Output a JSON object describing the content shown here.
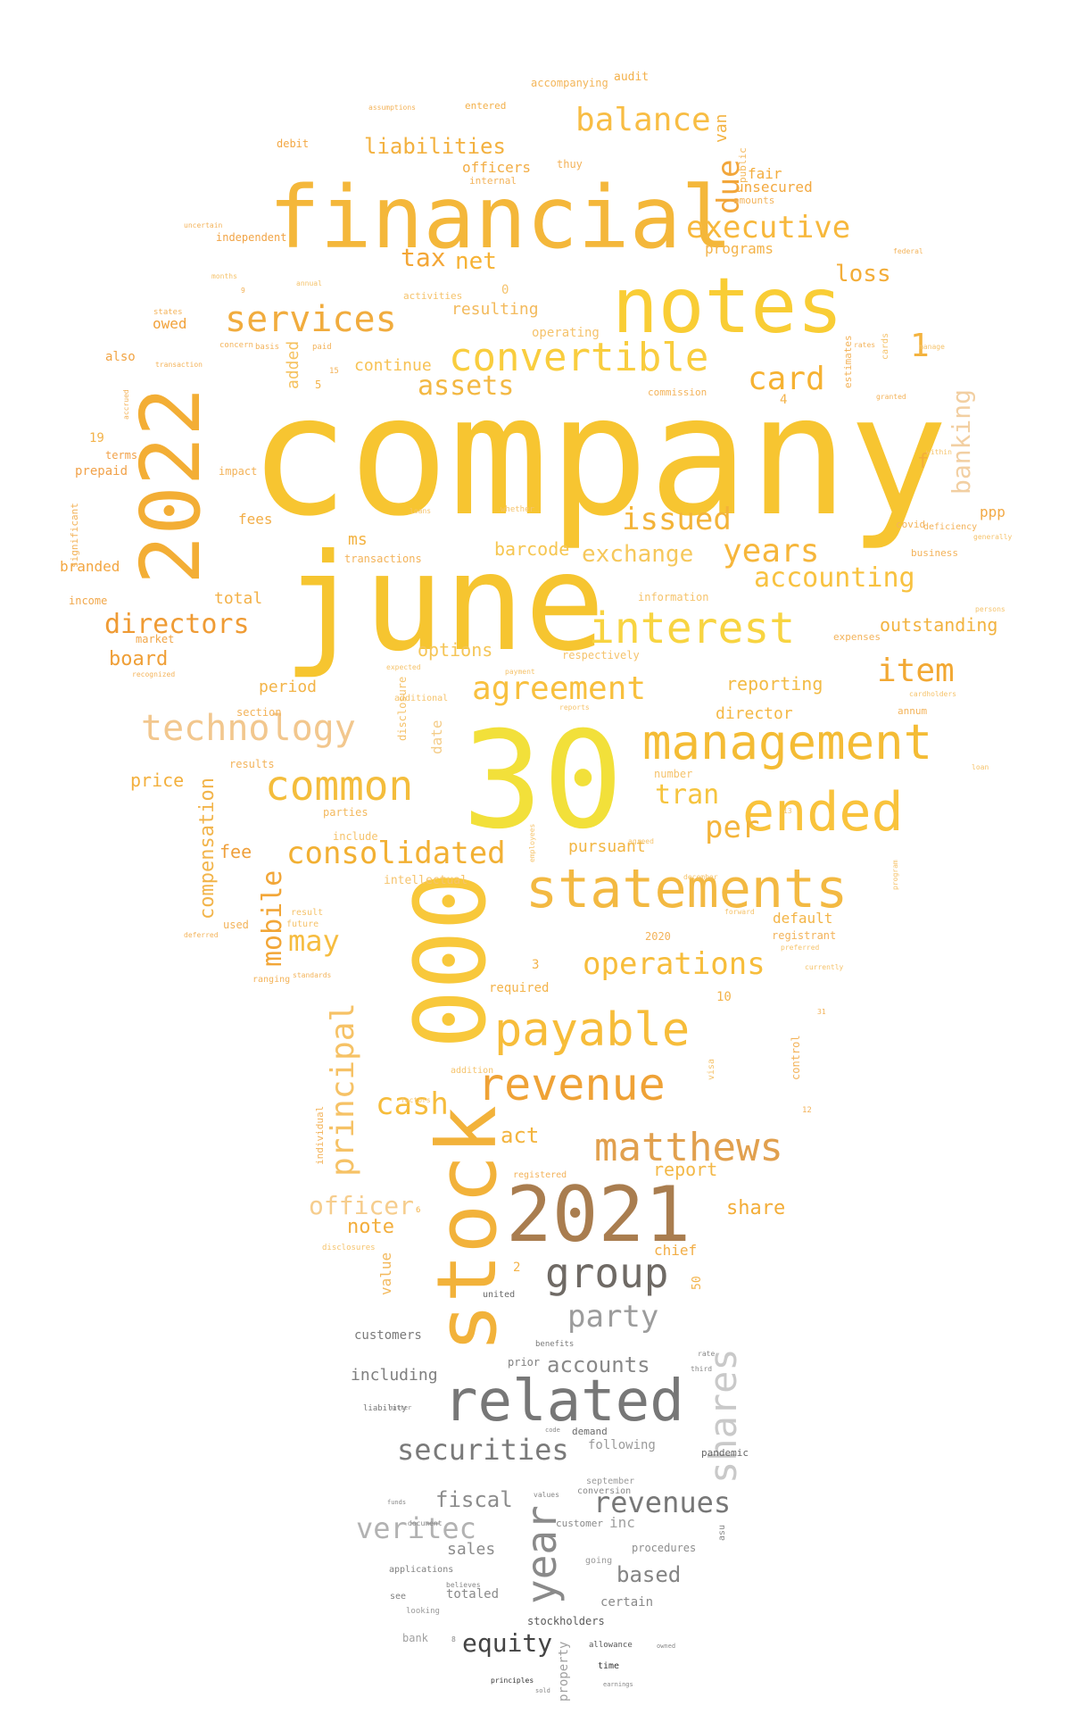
{
  "word_cloud": {
    "words": [
      {
        "text": "company",
        "color": "#f7c531"
      },
      {
        "text": "june",
        "color": "#f6c530"
      },
      {
        "text": "30",
        "color": "#f2e03a"
      },
      {
        "text": "financial",
        "color": "#f4b73a"
      },
      {
        "text": "notes",
        "color": "#f9cd35"
      },
      {
        "text": "2022",
        "color": "#f3ae35"
      },
      {
        "text": "000",
        "color": "#f8c83b"
      },
      {
        "text": "stock",
        "color": "#f2b23a"
      },
      {
        "text": "2021",
        "color": "#a97d4f"
      },
      {
        "text": "related",
        "color": "#777777"
      },
      {
        "text": "statements",
        "color": "#f3b942"
      },
      {
        "text": "management",
        "color": "#f4bc35"
      },
      {
        "text": "ended",
        "color": "#f9c33c"
      },
      {
        "text": "payable",
        "color": "#f7bd3a"
      },
      {
        "text": "revenue",
        "color": "#efa236"
      },
      {
        "text": "matthews",
        "color": "#e1a04e"
      },
      {
        "text": "group",
        "color": "#6f6a65"
      },
      {
        "text": "shares",
        "color": "#c9c9c9"
      },
      {
        "text": "year",
        "color": "#8a8a8a"
      },
      {
        "text": "interest",
        "color": "#f8d441"
      },
      {
        "text": "technology",
        "color": "#f2c78e"
      },
      {
        "text": "common",
        "color": "#f4bd3c"
      },
      {
        "text": "consolidated",
        "color": "#f2b033"
      },
      {
        "text": "convertible",
        "color": "#f9cd3e"
      },
      {
        "text": "services",
        "color": "#f1ac3e"
      },
      {
        "text": "balance",
        "color": "#f8bd44"
      },
      {
        "text": "executive",
        "color": "#f7b83c"
      },
      {
        "text": "agreement",
        "color": "#f8c03e"
      },
      {
        "text": "operations",
        "color": "#f7bd3b"
      },
      {
        "text": "years",
        "color": "#f6b63b"
      },
      {
        "text": "accounting",
        "color": "#f8c240"
      },
      {
        "text": "issued",
        "color": "#f3b338"
      },
      {
        "text": "directors",
        "color": "#ef9b34"
      },
      {
        "text": "card",
        "color": "#f6b232"
      },
      {
        "text": "due",
        "color": "#f2a63a"
      },
      {
        "text": "item",
        "color": "#f2a833"
      },
      {
        "text": "principal",
        "color": "#f6c266"
      },
      {
        "text": "mobile",
        "color": "#f2a637"
      },
      {
        "text": "cash",
        "color": "#f6bc3b"
      },
      {
        "text": "officer",
        "color": "#f6cd8d"
      },
      {
        "text": "securities",
        "color": "#7a7a7a"
      },
      {
        "text": "veritec",
        "color": "#b2b2b2"
      },
      {
        "text": "revenues",
        "color": "#777777"
      },
      {
        "text": "equity",
        "color": "#444444"
      },
      {
        "text": "party",
        "color": "#9c9c9c"
      },
      {
        "text": "accounts",
        "color": "#888888"
      },
      {
        "text": "based",
        "color": "#848484"
      },
      {
        "text": "fiscal",
        "color": "#8c8c8c"
      },
      {
        "text": "exchange",
        "color": "#f6c85c"
      },
      {
        "text": "assets",
        "color": "#f3b843"
      },
      {
        "text": "liabilities",
        "color": "#f3b13f"
      },
      {
        "text": "banking",
        "color": "#f2cfa2"
      },
      {
        "text": "compensation",
        "color": "#f2b44a"
      },
      {
        "text": "per",
        "color": "#f4b43a"
      },
      {
        "text": "tran",
        "color": "#f6c43e"
      },
      {
        "text": "may",
        "color": "#f6bc3f"
      },
      {
        "text": "tax",
        "color": "#f3a636"
      },
      {
        "text": "net",
        "color": "#f6b234"
      },
      {
        "text": "loss",
        "color": "#f3ad38"
      },
      {
        "text": "board",
        "color": "#ef9f37"
      },
      {
        "text": "share",
        "color": "#f3ad38"
      },
      {
        "text": "act",
        "color": "#f3b43e"
      },
      {
        "text": "note",
        "color": "#f3ae3c"
      },
      {
        "text": "report",
        "color": "#f3b847"
      },
      {
        "text": "fee",
        "color": "#efa03c"
      },
      {
        "text": "1",
        "color": "#f3b33f"
      },
      {
        "text": "f",
        "color": "#f3ad3a"
      },
      {
        "text": "outstanding",
        "color": "#f2b340"
      },
      {
        "text": "reporting",
        "color": "#f3bb45"
      },
      {
        "text": "director",
        "color": "#f4b845"
      },
      {
        "text": "pursuant",
        "color": "#f2b644"
      },
      {
        "text": "options",
        "color": "#f5c556"
      },
      {
        "text": "barcode",
        "color": "#f6c651"
      },
      {
        "text": "resulting",
        "color": "#f3ba5c"
      },
      {
        "text": "continue",
        "color": "#f7c254"
      },
      {
        "text": "officers",
        "color": "#f2ad45"
      },
      {
        "text": "unsecured",
        "color": "#f3a940"
      },
      {
        "text": "fair",
        "color": "#f3ad3e"
      },
      {
        "text": "programs",
        "color": "#f3b34a"
      },
      {
        "text": "owed",
        "color": "#f1a23b"
      },
      {
        "text": "added",
        "color": "#f5c260"
      },
      {
        "text": "price",
        "color": "#f3b03e"
      },
      {
        "text": "total",
        "color": "#f3b148"
      },
      {
        "text": "period",
        "color": "#f3b448"
      },
      {
        "text": "fees",
        "color": "#f2ad46"
      },
      {
        "text": "branded",
        "color": "#f3a640"
      },
      {
        "text": "default",
        "color": "#f3b446"
      },
      {
        "text": "value",
        "color": "#f3b95c"
      },
      {
        "text": "chief",
        "color": "#f2ad45"
      },
      {
        "text": "van",
        "color": "#f3b342"
      },
      {
        "text": "ms",
        "color": "#f3b240"
      },
      {
        "text": "date",
        "color": "#f4cc88"
      },
      {
        "text": "ppp",
        "color": "#f2a945"
      },
      {
        "text": "including",
        "color": "#7f7f7f"
      },
      {
        "text": "customers",
        "color": "#7a7a7a"
      },
      {
        "text": "sales",
        "color": "#8c8c8c"
      },
      {
        "text": "inc",
        "color": "#a0a0a0"
      },
      {
        "text": "following",
        "color": "#9a9a9a"
      },
      {
        "text": "certain",
        "color": "#8a8a8a"
      },
      {
        "text": "totaled",
        "color": "#8a8a8a"
      },
      {
        "text": "stockholders",
        "color": "#5a5a5a"
      },
      {
        "text": "property",
        "color": "#a0a0a0"
      },
      {
        "text": "procedures",
        "color": "#8e8e8e"
      },
      {
        "text": "prior",
        "color": "#808080"
      },
      {
        "text": "demand",
        "color": "#6a6a6a"
      },
      {
        "text": "pandemic",
        "color": "#666666"
      },
      {
        "text": "customer",
        "color": "#8a8a8a"
      },
      {
        "text": "time",
        "color": "#333333"
      },
      {
        "text": "audit",
        "color": "#f3b04a"
      },
      {
        "text": "accompanying",
        "color": "#f3b65a"
      },
      {
        "text": "entered",
        "color": "#f3b04a"
      },
      {
        "text": "internal",
        "color": "#f3b35a"
      },
      {
        "text": "debit",
        "color": "#f3a844"
      },
      {
        "text": "independent",
        "color": "#f1a446"
      },
      {
        "text": "amounts",
        "color": "#f3b35a"
      },
      {
        "text": "public",
        "color": "#f3b95e"
      },
      {
        "text": "thuy",
        "color": "#f3b35a"
      },
      {
        "text": "also",
        "color": "#f1a444"
      },
      {
        "text": "prepaid",
        "color": "#f1a24a"
      },
      {
        "text": "terms",
        "color": "#f1a24a"
      },
      {
        "text": "income",
        "color": "#f1a74a"
      },
      {
        "text": "market",
        "color": "#f1a74a"
      },
      {
        "text": "impact",
        "color": "#f3b35a"
      },
      {
        "text": "section",
        "color": "#f3b35a"
      },
      {
        "text": "results",
        "color": "#f3b35a"
      },
      {
        "text": "parties",
        "color": "#f3b95e"
      },
      {
        "text": "include",
        "color": "#f5c36c"
      },
      {
        "text": "transactions",
        "color": "#f3b35a"
      },
      {
        "text": "information",
        "color": "#f5c36c"
      },
      {
        "text": "respectively",
        "color": "#f5c36c"
      },
      {
        "text": "expenses",
        "color": "#f3b35a"
      },
      {
        "text": "business",
        "color": "#f3b35a"
      },
      {
        "text": "covid",
        "color": "#f3b35a"
      },
      {
        "text": "annum",
        "color": "#f3b35a"
      },
      {
        "text": "number",
        "color": "#f5c36c"
      },
      {
        "text": "intellectual",
        "color": "#f5c36c"
      },
      {
        "text": "required",
        "color": "#f3b34a"
      },
      {
        "text": "registrant",
        "color": "#f3b35a"
      },
      {
        "text": "2020",
        "color": "#f3b35a"
      },
      {
        "text": "used",
        "color": "#f3b35a"
      },
      {
        "text": "ranging",
        "color": "#f3b35a"
      },
      {
        "text": "deficiency",
        "color": "#f3b35a"
      },
      {
        "text": "activities",
        "color": "#f5c36c"
      },
      {
        "text": "operating",
        "color": "#f5c36c"
      },
      {
        "text": "commission",
        "color": "#f3b35a"
      },
      {
        "text": "estimates",
        "color": "#f3b35a"
      },
      {
        "text": "individual",
        "color": "#f3b35a"
      },
      {
        "text": "control",
        "color": "#f3b35a"
      },
      {
        "text": "addition",
        "color": "#f5c36c"
      },
      {
        "text": "registered",
        "color": "#f3b35a"
      },
      {
        "text": "additional",
        "color": "#f5c36c"
      },
      {
        "text": "disclosure",
        "color": "#f5c36c"
      },
      {
        "text": "3",
        "color": "#f3b34a"
      },
      {
        "text": "10",
        "color": "#f3b34a"
      },
      {
        "text": "19",
        "color": "#f3b34a"
      },
      {
        "text": "0",
        "color": "#f5c36c"
      },
      {
        "text": "4",
        "color": "#f3b34a"
      },
      {
        "text": "5",
        "color": "#f3b34a"
      },
      {
        "text": "2",
        "color": "#f3b34a"
      },
      {
        "text": "50",
        "color": "#f3b34a"
      },
      {
        "text": "significant",
        "color": "#f3b35a"
      },
      {
        "text": "future",
        "color": "#f5c36c"
      },
      {
        "text": "result",
        "color": "#f5c36c"
      },
      {
        "text": "conversion",
        "color": "#8a8a8a"
      },
      {
        "text": "september",
        "color": "#9a9a9a"
      },
      {
        "text": "united",
        "color": "#6a6a6a"
      },
      {
        "text": "see",
        "color": "#808080"
      },
      {
        "text": "going",
        "color": "#9a9a9a"
      },
      {
        "text": "applications",
        "color": "#808080"
      },
      {
        "text": "looking",
        "color": "#9a9a9a"
      },
      {
        "text": "allowance",
        "color": "#555555"
      },
      {
        "text": "bank",
        "color": "#a0a0a0"
      },
      {
        "text": "benefits",
        "color": "#7a7a7a"
      },
      {
        "text": "liability",
        "color": "#777777"
      },
      {
        "text": "principles",
        "color": "#333333"
      },
      {
        "text": "asu",
        "color": "#888888"
      },
      {
        "text": "visa",
        "color": "#f5c36c"
      },
      {
        "text": "cards",
        "color": "#f5c36c"
      },
      {
        "text": "rates",
        "color": "#f3b35a"
      },
      {
        "text": "within",
        "color": "#f5c36c"
      },
      {
        "text": "generally",
        "color": "#f5c36c"
      },
      {
        "text": "cardholders",
        "color": "#f5c36c"
      },
      {
        "text": "loan",
        "color": "#f5c36c"
      },
      {
        "text": "program",
        "color": "#f5c36c"
      },
      {
        "text": "currently",
        "color": "#f5c36c"
      },
      {
        "text": "preferred",
        "color": "#f5c36c"
      },
      {
        "text": "forward",
        "color": "#f5c36c"
      },
      {
        "text": "whether",
        "color": "#f5c36c"
      },
      {
        "text": "months",
        "color": "#f5c36c"
      },
      {
        "text": "annual",
        "color": "#f5c36c"
      },
      {
        "text": "standards",
        "color": "#f3b35a"
      },
      {
        "text": "deferred",
        "color": "#f3b35a"
      },
      {
        "text": "recognized",
        "color": "#f3b35a"
      },
      {
        "text": "transaction",
        "color": "#f3b35a"
      },
      {
        "text": "accrued",
        "color": "#f3b35a"
      },
      {
        "text": "basis",
        "color": "#f3b35a"
      },
      {
        "text": "paid",
        "color": "#f3b35a"
      },
      {
        "text": "concern",
        "color": "#f3b35a"
      },
      {
        "text": "states",
        "color": "#f3b35a"
      },
      {
        "text": "uncertain",
        "color": "#f3b35a"
      },
      {
        "text": "assumptions",
        "color": "#f3b35a"
      },
      {
        "text": "loans",
        "color": "#f5c36c"
      },
      {
        "text": "expected",
        "color": "#f5c36c"
      },
      {
        "text": "federal",
        "color": "#f3b35a"
      },
      {
        "text": "granted",
        "color": "#f3b35a"
      },
      {
        "text": "employees",
        "color": "#f5c36c"
      },
      {
        "text": "reports",
        "color": "#f5c36c"
      },
      {
        "text": "agreed",
        "color": "#f5c36c"
      },
      {
        "text": "december",
        "color": "#f5c36c"
      },
      {
        "text": "payment",
        "color": "#f5c36c"
      },
      {
        "text": "manage",
        "color": "#f5c36c"
      },
      {
        "text": "rate",
        "color": "#888888"
      },
      {
        "text": "third",
        "color": "#888888"
      },
      {
        "text": "code",
        "color": "#888888"
      },
      {
        "text": "document",
        "color": "#888888"
      },
      {
        "text": "values",
        "color": "#888888"
      },
      {
        "text": "believes",
        "color": "#888888"
      },
      {
        "text": "funds",
        "color": "#888888"
      },
      {
        "text": "disclosures",
        "color": "#f5c36c"
      },
      {
        "text": "factors",
        "color": "#f5c36c"
      },
      {
        "text": "persons",
        "color": "#f5c36c"
      },
      {
        "text": "sold",
        "color": "#888888"
      },
      {
        "text": "owned",
        "color": "#888888"
      },
      {
        "text": "earnings",
        "color": "#888888"
      },
      {
        "text": "matter",
        "color": "#888888"
      },
      {
        "text": "8",
        "color": "#888888"
      },
      {
        "text": "6",
        "color": "#f3b34a"
      },
      {
        "text": "12",
        "color": "#f3b35a"
      },
      {
        "text": "13",
        "color": "#f5c36c"
      },
      {
        "text": "31",
        "color": "#f3b35a"
      },
      {
        "text": "15",
        "color": "#f3b35a"
      },
      {
        "text": "9",
        "color": "#f3b35a"
      }
    ]
  }
}
